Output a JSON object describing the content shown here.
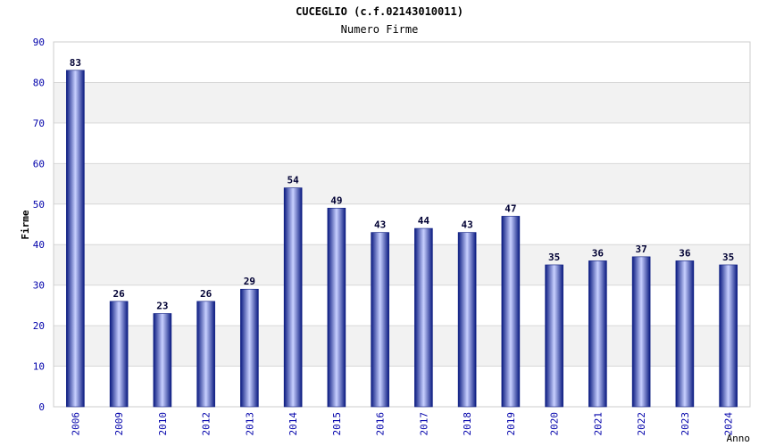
{
  "chart_data": {
    "type": "bar",
    "title": "CUCEGLIO (c.f.02143010011)",
    "subtitle": "Numero Firme",
    "xlabel": "Anno",
    "ylabel": "Firme",
    "ylim": [
      0,
      90
    ],
    "yticks": [
      0,
      10,
      20,
      30,
      40,
      50,
      60,
      70,
      80,
      90
    ],
    "categories": [
      "2006",
      "2009",
      "2010",
      "2012",
      "2013",
      "2014",
      "2015",
      "2016",
      "2017",
      "2018",
      "2019",
      "2020",
      "2021",
      "2022",
      "2023",
      "2024"
    ],
    "values": [
      83,
      26,
      23,
      26,
      29,
      54,
      49,
      43,
      44,
      43,
      47,
      35,
      36,
      37,
      36,
      35
    ],
    "grid": true,
    "legend": "none",
    "colors": {
      "bar_dark": "#0a1a80",
      "bar_light": "#c8d0ff",
      "band": "#f2f2f2",
      "axis_text": "#0000aa",
      "value_text": "#000033",
      "grid": "#d8d8d8"
    }
  }
}
